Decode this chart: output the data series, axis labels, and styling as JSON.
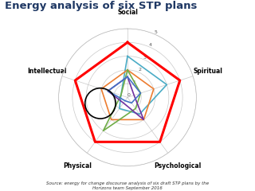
{
  "title": "Energy analysis of six STP plans",
  "title_color": "#1F3864",
  "categories": [
    "Social",
    "Spiritual",
    "Psychological",
    "Physical",
    "Intellectual"
  ],
  "series": [
    {
      "color": "#FF0000",
      "values": [
        4,
        4,
        4,
        4,
        4
      ],
      "lw": 2.2
    },
    {
      "color": "#4BACC6",
      "values": [
        3,
        3,
        1.5,
        1.0,
        0.5
      ],
      "lw": 1.2
    },
    {
      "color": "#ED7D31",
      "values": [
        2,
        2,
        2,
        2,
        2
      ],
      "lw": 1.2
    },
    {
      "color": "#70AD47",
      "values": [
        2,
        1,
        1,
        3,
        0.5
      ],
      "lw": 1.2
    },
    {
      "color": "#7030A0",
      "values": [
        1.5,
        0.5,
        2,
        0.5,
        1.5
      ],
      "lw": 1.2
    },
    {
      "color": "#4472C4",
      "values": [
        1.5,
        1,
        0.5,
        0.3,
        1.5
      ],
      "lw": 1.2
    }
  ],
  "grid_color": "#BBBBBB",
  "max_val": 5,
  "tick_values": [
    0,
    1,
    2,
    3,
    4,
    5
  ],
  "source_line1": "Source: energy for change discourse analysis of six draft STP plans by the",
  "source_line2": "Horizons team September 2016",
  "bg_color": "#FFFFFF"
}
